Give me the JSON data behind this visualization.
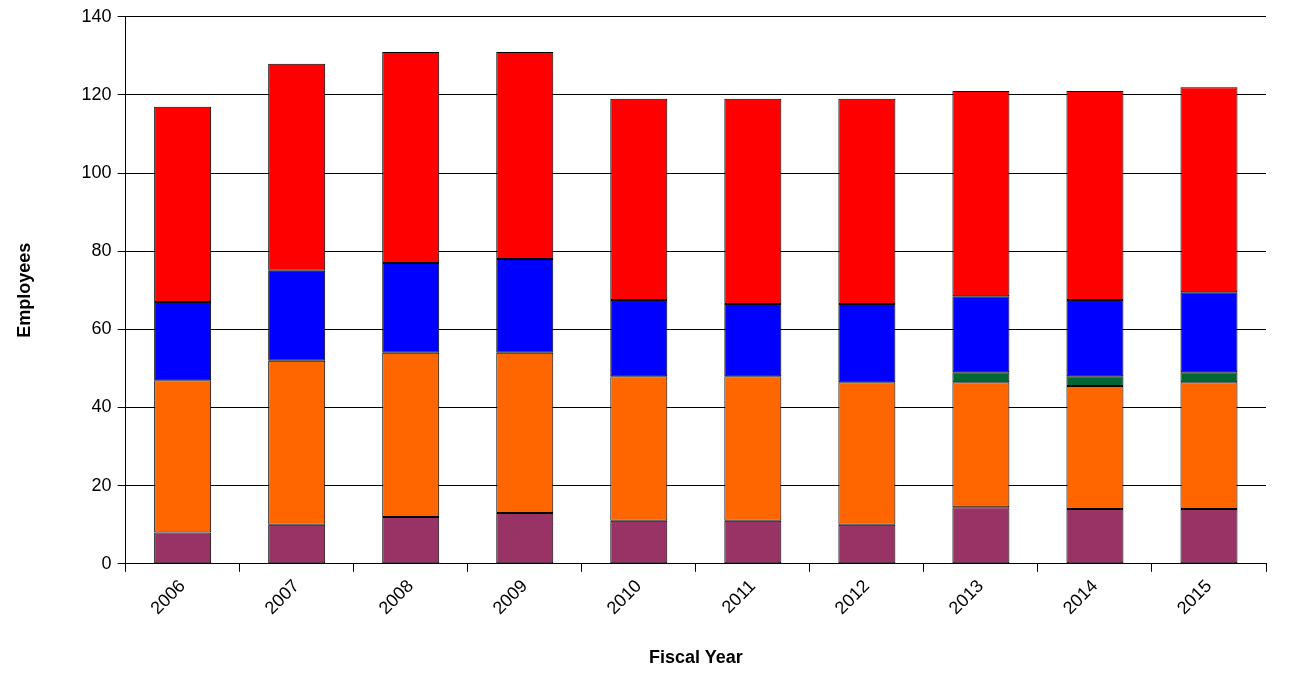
{
  "chart_data": {
    "type": "bar",
    "xlabel": "Fiscal Year",
    "ylabel": "Employees",
    "stacked": true,
    "categories": [
      "2006",
      "2007",
      "2008",
      "2009",
      "2010",
      "2011",
      "2012",
      "2013",
      "2014",
      "2015"
    ],
    "series": [
      {
        "color": "#993366",
        "values": [
          8,
          10,
          12,
          13,
          11,
          11,
          10,
          14.5,
          14,
          14
        ]
      },
      {
        "color": "#ff6600",
        "values": [
          39,
          42,
          42,
          41,
          37,
          37,
          36.5,
          32,
          31.5,
          32.5
        ]
      },
      {
        "color": "#006633",
        "values": [
          null,
          null,
          null,
          null,
          null,
          null,
          null,
          2.5,
          2.5,
          2.5
        ]
      },
      {
        "color": "#0000ff",
        "values": [
          20,
          23,
          23,
          24,
          19.5,
          18.5,
          20,
          19.5,
          19.5,
          20.5
        ]
      },
      {
        "color": "#ff0000",
        "values": [
          50,
          53,
          54,
          53,
          51.5,
          52.5,
          52.5,
          52.5,
          53.5,
          52.5
        ]
      }
    ],
    "ylim": [
      0,
      140
    ],
    "yticks": [
      0,
      20,
      40,
      60,
      80,
      100,
      120,
      140
    ],
    "grid": "y",
    "legend": false
  }
}
